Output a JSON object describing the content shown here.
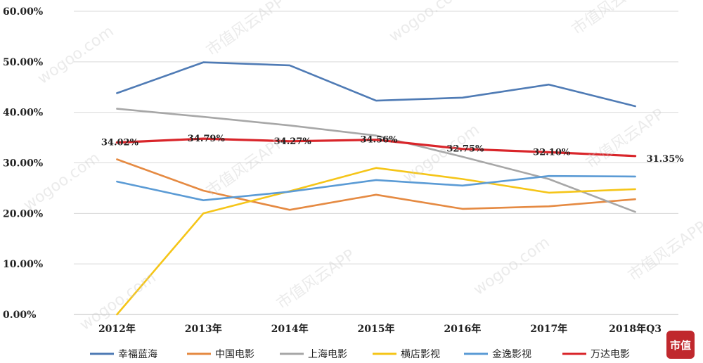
{
  "chart_data": {
    "type": "line",
    "title": "",
    "xlabel": "",
    "ylabel": "",
    "x": [
      "2012年",
      "2013年",
      "2014年",
      "2015年",
      "2016年",
      "2017年",
      "2018年Q3"
    ],
    "ylim": [
      0,
      60
    ],
    "yticks": [
      "0.00%",
      "10.00%",
      "20.00%",
      "30.00%",
      "40.00%",
      "50.00%",
      "60.00%"
    ],
    "grid": true,
    "legend_position": "bottom",
    "series": [
      {
        "name": "幸福蓝海",
        "color": "#4f7bb5",
        "values": [
          43.8,
          49.9,
          49.3,
          42.3,
          42.9,
          45.5,
          41.2
        ]
      },
      {
        "name": "中国电影",
        "color": "#e58a42",
        "values": [
          30.7,
          24.5,
          20.7,
          23.7,
          20.9,
          21.4,
          22.8
        ]
      },
      {
        "name": "上海电影",
        "color": "#a7a7a7",
        "values": [
          40.7,
          39.1,
          37.4,
          35.4,
          31.2,
          26.8,
          20.3
        ]
      },
      {
        "name": "横店影视",
        "color": "#f5c518",
        "values": [
          0.0,
          20.0,
          24.4,
          29.0,
          26.8,
          24.1,
          24.8
        ]
      },
      {
        "name": "金逸影视",
        "color": "#5b9bd5",
        "values": [
          26.3,
          22.6,
          24.3,
          26.6,
          25.5,
          27.4,
          27.3
        ]
      },
      {
        "name": "万达电影",
        "color": "#d9252a",
        "values": [
          34.02,
          34.79,
          34.27,
          34.56,
          32.75,
          32.1,
          31.35
        ]
      }
    ],
    "data_labels": {
      "series": "万达电影",
      "labels": [
        "34.02%",
        "34.79%",
        "34.27%",
        "34.56%",
        "32.75%",
        "32.10%",
        "31.35%"
      ]
    }
  },
  "watermark": {
    "texts": [
      "wogoo.com",
      "市值风云APP"
    ]
  },
  "logo": {
    "text": "市值"
  }
}
